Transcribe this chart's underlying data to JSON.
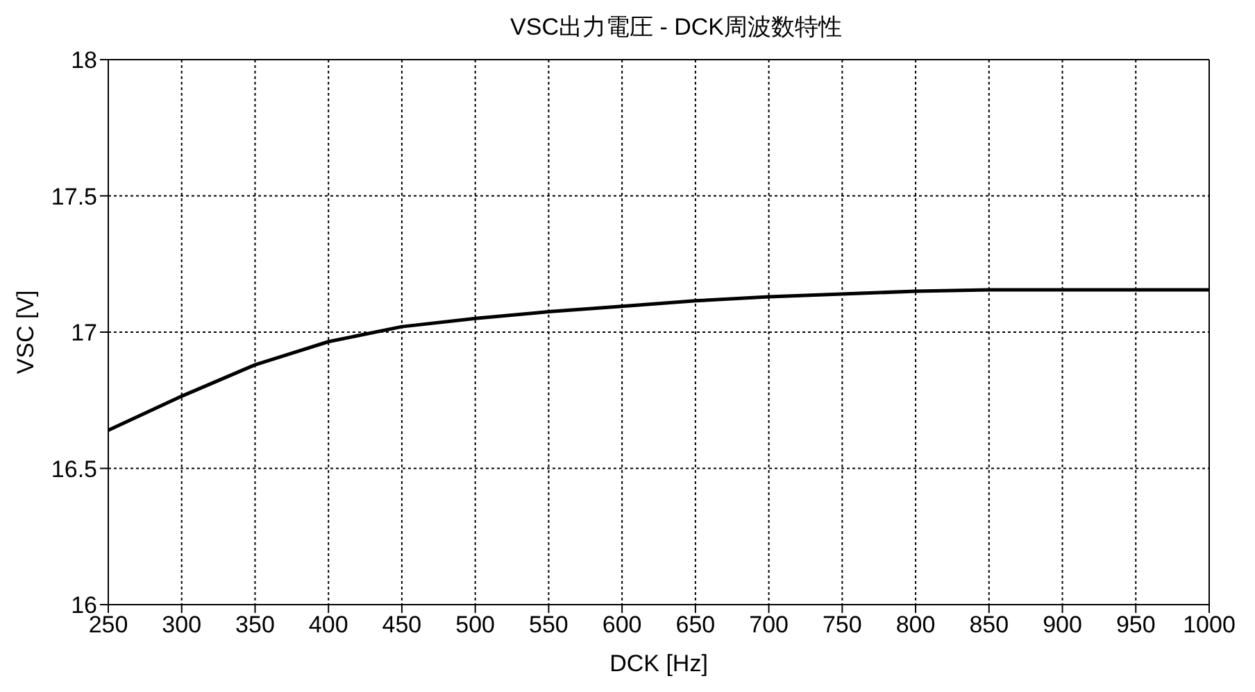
{
  "chart_data": {
    "type": "line",
    "title": "VSC出力電圧 - DCK周波数特性",
    "xlabel": "DCK [Hz]",
    "ylabel": "VSC [V]",
    "x": [
      250,
      300,
      350,
      400,
      450,
      500,
      550,
      600,
      650,
      700,
      750,
      800,
      850,
      900,
      950,
      1000
    ],
    "series": [
      {
        "color": "#000000",
        "values": [
          16.64,
          16.765,
          16.88,
          16.965,
          17.02,
          17.05,
          17.075,
          17.095,
          17.115,
          17.13,
          17.14,
          17.15,
          17.155,
          17.155,
          17.155,
          17.155
        ]
      }
    ],
    "xlim": [
      250,
      1000
    ],
    "xticks": [
      250,
      300,
      350,
      400,
      450,
      500,
      550,
      600,
      650,
      700,
      750,
      800,
      850,
      900,
      950,
      1000
    ],
    "ylim": [
      16,
      18
    ],
    "yticks": [
      16,
      16.5,
      17,
      17.5,
      18
    ],
    "grid": true,
    "marker": "none",
    "line_style": "solid"
  }
}
